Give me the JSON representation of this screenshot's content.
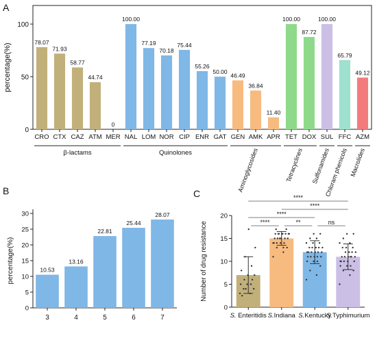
{
  "figure": {
    "panel_labels": {
      "a": "A",
      "b": "B",
      "c": "C"
    }
  },
  "chart_data": [
    {
      "panel": "A",
      "type": "bar",
      "ylabel": "percentage(%)",
      "xlabel": "",
      "ylim": [
        0,
        100
      ],
      "yticks": [
        0,
        50,
        100
      ],
      "grid": false,
      "categories": [
        "CRO",
        "CTX",
        "CAZ",
        "ATM",
        "MER",
        "NAL",
        "LOM",
        "NOR",
        "CIP",
        "ENR",
        "GAT",
        "GEN",
        "AMK",
        "APR",
        "TET",
        "DOX",
        "SUL",
        "FFC",
        "AZM"
      ],
      "values": [
        78.07,
        71.93,
        58.77,
        44.74,
        0,
        100.0,
        77.19,
        70.18,
        75.44,
        55.26,
        50.0,
        46.49,
        36.84,
        11.4,
        100.0,
        87.72,
        100.0,
        65.79,
        49.12
      ],
      "value_labels": [
        "78.07",
        "71.93",
        "58.77",
        "44.74",
        "0",
        "100.00",
        "77.19",
        "70.18",
        "75.44",
        "55.26",
        "50.00",
        "46.49",
        "36.84",
        "11.40",
        "100.00",
        "87.72",
        "100.00",
        "65.79",
        "49.12"
      ],
      "colors": [
        "#c2b07a",
        "#c2b07a",
        "#c2b07a",
        "#c2b07a",
        "#c2b07a",
        "#7fb7e6",
        "#7fb7e6",
        "#7fb7e6",
        "#7fb7e6",
        "#7fb7e6",
        "#7fb7e6",
        "#f7bb80",
        "#f7bb80",
        "#f7bb80",
        "#8fd98a",
        "#8fd98a",
        "#cbbfe6",
        "#9fe0cf",
        "#f27c7c"
      ],
      "groups": [
        {
          "label": "β-lactams",
          "start": 0,
          "end": 4
        },
        {
          "label": "Quinolones",
          "start": 5,
          "end": 10
        },
        {
          "label": "Aminoglycosides",
          "start": 11,
          "end": 13
        },
        {
          "label": "Tetracyclines",
          "start": 14,
          "end": 15
        },
        {
          "label": "Sulfonamides",
          "start": 16,
          "end": 16
        },
        {
          "label": "Chloram phenicols",
          "start": 17,
          "end": 17
        },
        {
          "label": "Macrolides",
          "start": 18,
          "end": 18
        }
      ]
    },
    {
      "panel": "B",
      "type": "bar",
      "ylabel": "percentage(%)",
      "xlabel": "",
      "ylim": [
        0,
        30
      ],
      "yticks": [
        0,
        5,
        10,
        15,
        20,
        25,
        30
      ],
      "grid": false,
      "categories": [
        "3",
        "4",
        "5",
        "6",
        "7"
      ],
      "values": [
        10.53,
        13.16,
        22.81,
        25.44,
        28.07
      ],
      "value_labels": [
        "10.53",
        "13.16",
        "22.81",
        "25.44",
        "28.07"
      ],
      "color": "#7fb7e6"
    },
    {
      "panel": "C",
      "type": "bar",
      "ylabel": "Number of drug resistance",
      "xlabel": "",
      "ylim": [
        0,
        20
      ],
      "yticks": [
        0,
        5,
        10,
        15,
        20
      ],
      "grid": false,
      "categories": [
        {
          "italic": "S.",
          "rest": " Enteritidis"
        },
        {
          "italic": "S.",
          "rest": "Indiana"
        },
        {
          "italic": "S.",
          "rest": "Kentucky"
        },
        {
          "italic": "S.",
          "rest": "Typhimurium"
        }
      ],
      "values": [
        7.0,
        15.0,
        12.0,
        11.0
      ],
      "error": [
        4.0,
        1.5,
        2.5,
        2.8
      ],
      "colors": [
        "#c2b07a",
        "#f7bb80",
        "#7fb7e6",
        "#cbbfe6"
      ],
      "points": [
        [
          3,
          3,
          4,
          4,
          5,
          5,
          5,
          6,
          7,
          7,
          8,
          9,
          11,
          13,
          17,
          2.5,
          6,
          4
        ],
        [
          11,
          12,
          13,
          13,
          14,
          14,
          14,
          15,
          15,
          15,
          15,
          15,
          16,
          16,
          16,
          16,
          16,
          16,
          16,
          16,
          17,
          17,
          15,
          14,
          13,
          14
        ],
        [
          6,
          7,
          8,
          9,
          10,
          10,
          10,
          11,
          11,
          11,
          11,
          12,
          12,
          12,
          12,
          12,
          13,
          13,
          13,
          13,
          13,
          14,
          14,
          14,
          15,
          15,
          16,
          16,
          12,
          11
        ],
        [
          5,
          7,
          8,
          8,
          9,
          9,
          9,
          10,
          10,
          10,
          10,
          11,
          11,
          11,
          11,
          11,
          12,
          12,
          12,
          12,
          13,
          13,
          13,
          14,
          14,
          15,
          16,
          16,
          10,
          11
        ]
      ],
      "significance": [
        {
          "a": 0,
          "b": 3,
          "label": "****"
        },
        {
          "a": 1,
          "b": 3,
          "label": "****"
        },
        {
          "a": 0,
          "b": 2,
          "label": "****"
        },
        {
          "a": 0,
          "b": 1,
          "label": "****"
        },
        {
          "a": 1,
          "b": 2,
          "label": "**"
        },
        {
          "a": 2,
          "b": 3,
          "label": "ns"
        }
      ]
    }
  ]
}
